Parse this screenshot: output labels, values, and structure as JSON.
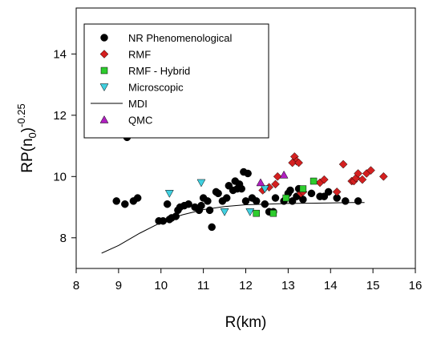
{
  "chart_data": {
    "type": "scatter",
    "xlabel": "R(km)",
    "ylabel_main": "RP(n",
    "ylabel_sub": "0",
    "ylabel_close": ")",
    "ylabel_sup": "-0.25",
    "xlim": [
      8,
      16
    ],
    "ylim": [
      7,
      15.5
    ],
    "x_ticks": [
      8,
      9,
      10,
      11,
      12,
      13,
      14,
      15,
      16
    ],
    "y_ticks": [
      8,
      10,
      12,
      14
    ],
    "legend_position": "top-left",
    "series": [
      {
        "name": "NR Phenomenological",
        "marker": "circle",
        "color": "#000000",
        "points": [
          [
            8.95,
            9.2
          ],
          [
            9.15,
            9.1
          ],
          [
            9.35,
            9.2
          ],
          [
            9.45,
            9.3
          ],
          [
            9.2,
            11.28
          ],
          [
            9.95,
            8.55
          ],
          [
            10.05,
            8.55
          ],
          [
            10.15,
            9.1
          ],
          [
            10.2,
            8.6
          ],
          [
            10.25,
            8.65
          ],
          [
            10.35,
            8.7
          ],
          [
            10.4,
            8.9
          ],
          [
            10.45,
            9.0
          ],
          [
            10.55,
            9.05
          ],
          [
            10.65,
            9.1
          ],
          [
            10.8,
            9.0
          ],
          [
            10.9,
            8.9
          ],
          [
            10.95,
            9.05
          ],
          [
            11.0,
            9.3
          ],
          [
            11.15,
            8.9
          ],
          [
            11.2,
            8.35
          ],
          [
            11.3,
            9.5
          ],
          [
            11.35,
            9.45
          ],
          [
            11.45,
            9.2
          ],
          [
            11.55,
            9.3
          ],
          [
            11.6,
            9.7
          ],
          [
            11.7,
            9.55
          ],
          [
            11.75,
            9.85
          ],
          [
            11.8,
            9.6
          ],
          [
            11.85,
            9.75
          ],
          [
            11.9,
            9.6
          ],
          [
            11.95,
            10.15
          ],
          [
            12.0,
            9.2
          ],
          [
            12.05,
            10.1
          ],
          [
            12.15,
            9.3
          ],
          [
            12.25,
            9.2
          ],
          [
            12.45,
            9.1
          ],
          [
            12.55,
            8.85
          ],
          [
            12.65,
            8.85
          ],
          [
            12.7,
            9.3
          ],
          [
            12.9,
            9.2
          ],
          [
            13.0,
            9.45
          ],
          [
            13.05,
            9.55
          ],
          [
            13.1,
            9.2
          ],
          [
            13.25,
            9.6
          ],
          [
            13.35,
            9.25
          ],
          [
            13.55,
            9.45
          ],
          [
            13.75,
            9.35
          ],
          [
            13.85,
            9.35
          ],
          [
            13.95,
            9.5
          ],
          [
            14.15,
            9.3
          ],
          [
            14.35,
            9.2
          ],
          [
            14.65,
            9.2
          ],
          [
            13.2,
            9.35
          ],
          [
            11.1,
            9.2
          ]
        ]
      },
      {
        "name": "RMF",
        "marker": "diamond",
        "color": "#d42020",
        "points": [
          [
            12.4,
            9.55
          ],
          [
            12.55,
            9.65
          ],
          [
            12.7,
            9.75
          ],
          [
            12.75,
            10.0
          ],
          [
            13.15,
            10.65
          ],
          [
            13.2,
            10.5
          ],
          [
            13.3,
            9.45
          ],
          [
            13.35,
            9.5
          ],
          [
            13.75,
            9.8
          ],
          [
            13.85,
            9.9
          ],
          [
            14.15,
            9.5
          ],
          [
            14.3,
            10.4
          ],
          [
            14.5,
            9.85
          ],
          [
            14.55,
            9.85
          ],
          [
            14.6,
            9.95
          ],
          [
            14.65,
            10.1
          ],
          [
            14.75,
            9.9
          ],
          [
            14.85,
            10.1
          ],
          [
            14.95,
            10.2
          ],
          [
            15.25,
            10.0
          ],
          [
            13.1,
            10.45
          ],
          [
            13.25,
            10.45
          ]
        ]
      },
      {
        "name": "RMF - Hybrid",
        "marker": "square",
        "color": "#2ecc2e",
        "points": [
          [
            12.25,
            8.8
          ],
          [
            12.65,
            8.8
          ],
          [
            12.95,
            9.3
          ],
          [
            13.35,
            9.6
          ],
          [
            13.6,
            9.85
          ]
        ]
      },
      {
        "name": "Microscopic",
        "marker": "triangle-down",
        "color": "#40d0e0",
        "points": [
          [
            10.2,
            9.45
          ],
          [
            10.95,
            9.8
          ],
          [
            11.5,
            8.85
          ],
          [
            12.1,
            8.85
          ],
          [
            12.45,
            9.6
          ]
        ]
      },
      {
        "name": "MDI",
        "marker": "line",
        "color": "#000000",
        "points": [
          [
            8.6,
            7.5
          ],
          [
            9.0,
            7.75
          ],
          [
            9.5,
            8.15
          ],
          [
            10.0,
            8.5
          ],
          [
            10.5,
            8.75
          ],
          [
            11.0,
            8.92
          ],
          [
            11.5,
            9.02
          ],
          [
            12.0,
            9.08
          ],
          [
            12.5,
            9.1
          ],
          [
            13.0,
            9.12
          ],
          [
            13.5,
            9.13
          ],
          [
            14.0,
            9.14
          ],
          [
            14.5,
            9.15
          ],
          [
            14.8,
            9.15
          ]
        ]
      },
      {
        "name": "QMC",
        "marker": "triangle-up",
        "color": "#b020c0",
        "points": [
          [
            12.35,
            9.8
          ],
          [
            12.9,
            10.05
          ]
        ]
      }
    ]
  }
}
